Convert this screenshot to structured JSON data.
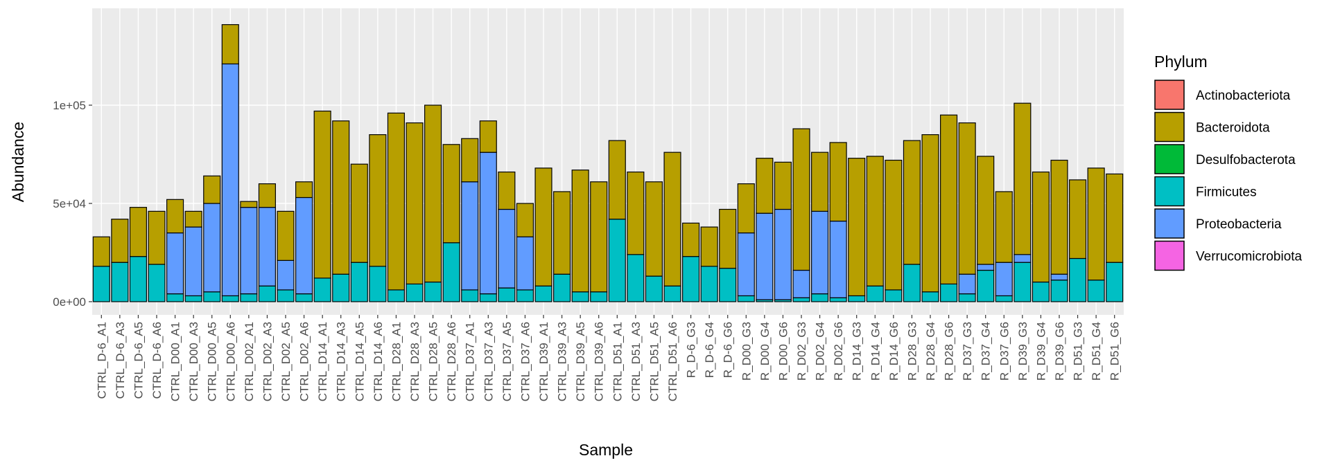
{
  "chart_data": {
    "type": "bar",
    "stacked": true,
    "x_label": "Sample",
    "y_label": "Abundance",
    "legend_title": "Phylum",
    "legend_position": "right",
    "grid": true,
    "ylim": [
      -6700,
      149300
    ],
    "yticks": [
      {
        "value": 0,
        "label": "0e+00"
      },
      {
        "value": 50000,
        "label": "5e+04"
      },
      {
        "value": 100000,
        "label": "1e+05"
      }
    ],
    "categories": [
      "CTRL_D-6_A1",
      "CTRL_D-6_A3",
      "CTRL_D-6_A5",
      "CTRL_D-6_A6",
      "CTRL_D00_A1",
      "CTRL_D00_A3",
      "CTRL_D00_A5",
      "CTRL_D00_A6",
      "CTRL_D02_A1",
      "CTRL_D02_A3",
      "CTRL_D02_A5",
      "CTRL_D02_A6",
      "CTRL_D14_A1",
      "CTRL_D14_A3",
      "CTRL_D14_A5",
      "CTRL_D14_A6",
      "CTRL_D28_A1",
      "CTRL_D28_A3",
      "CTRL_D28_A5",
      "CTRL_D28_A6",
      "CTRL_D37_A1",
      "CTRL_D37_A3",
      "CTRL_D37_A5",
      "CTRL_D37_A6",
      "CTRL_D39_A1",
      "CTRL_D39_A3",
      "CTRL_D39_A5",
      "CTRL_D39_A6",
      "CTRL_D51_A1",
      "CTRL_D51_A3",
      "CTRL_D51_A5",
      "CTRL_D51_A6",
      "R_D-6_G3",
      "R_D-6_G4",
      "R_D-6_G6",
      "R_D00_G3",
      "R_D00_G4",
      "R_D00_G6",
      "R_D02_G3",
      "R_D02_G4",
      "R_D02_G6",
      "R_D14_G3",
      "R_D14_G4",
      "R_D14_G6",
      "R_D28_G3",
      "R_D28_G4",
      "R_D28_G6",
      "R_D37_G3",
      "R_D37_G4",
      "R_D37_G6",
      "R_D39_G3",
      "R_D39_G4",
      "R_D39_G6",
      "R_D51_G3",
      "R_D51_G4",
      "R_D51_G6"
    ],
    "series": [
      {
        "name": "Actinobacteriota",
        "color": "#F8766D",
        "values": [
          0,
          0,
          0,
          0,
          0,
          0,
          0,
          0,
          0,
          0,
          0,
          0,
          0,
          0,
          0,
          0,
          0,
          0,
          0,
          0,
          0,
          0,
          0,
          0,
          0,
          0,
          0,
          0,
          0,
          0,
          0,
          0,
          0,
          0,
          0,
          0,
          0,
          0,
          0,
          0,
          0,
          0,
          0,
          0,
          0,
          0,
          0,
          0,
          0,
          0,
          0,
          0,
          0,
          0,
          0,
          0
        ]
      },
      {
        "name": "Bacteroidota",
        "color": "#B79F00",
        "values": [
          15000,
          22000,
          25000,
          27000,
          17000,
          8000,
          14000,
          20000,
          3000,
          12000,
          25000,
          8000,
          85000,
          78000,
          50000,
          67000,
          90000,
          82000,
          90000,
          50000,
          22000,
          16000,
          19000,
          17000,
          60000,
          42000,
          62000,
          56000,
          40000,
          42000,
          48000,
          68000,
          17000,
          20000,
          30000,
          25000,
          28000,
          24000,
          72000,
          30000,
          40000,
          70000,
          66000,
          66000,
          63000,
          80000,
          86000,
          77000,
          55000,
          36000,
          77000,
          56000,
          58000,
          40000,
          57000,
          45000
        ]
      },
      {
        "name": "Desulfobacterota",
        "color": "#00BA38",
        "values": [
          0,
          0,
          0,
          0,
          0,
          0,
          0,
          0,
          0,
          0,
          0,
          0,
          0,
          0,
          0,
          0,
          0,
          0,
          0,
          0,
          0,
          0,
          0,
          0,
          0,
          0,
          0,
          0,
          0,
          0,
          0,
          0,
          0,
          0,
          0,
          0,
          0,
          0,
          0,
          0,
          0,
          0,
          0,
          0,
          0,
          0,
          0,
          0,
          0,
          0,
          0,
          0,
          0,
          0,
          0,
          0
        ]
      },
      {
        "name": "Firmicutes",
        "color": "#00BFC4",
        "values": [
          18000,
          20000,
          23000,
          19000,
          4000,
          3000,
          5000,
          3000,
          4000,
          8000,
          6000,
          4000,
          12000,
          14000,
          20000,
          18000,
          6000,
          9000,
          10000,
          30000,
          6000,
          4000,
          7000,
          6000,
          8000,
          14000,
          5000,
          5000,
          42000,
          24000,
          13000,
          8000,
          23000,
          18000,
          17000,
          3000,
          1000,
          1000,
          2000,
          4000,
          2000,
          3000,
          8000,
          6000,
          19000,
          5000,
          9000,
          4000,
          16000,
          3000,
          20000,
          10000,
          11000,
          22000,
          11000,
          20000
        ]
      },
      {
        "name": "Proteobacteria",
        "color": "#619CFF",
        "values": [
          0,
          0,
          0,
          0,
          31000,
          35000,
          45000,
          118000,
          44000,
          40000,
          15000,
          49000,
          0,
          0,
          0,
          0,
          0,
          0,
          0,
          0,
          55000,
          72000,
          40000,
          27000,
          0,
          0,
          0,
          0,
          0,
          0,
          0,
          0,
          0,
          0,
          0,
          32000,
          44000,
          46000,
          14000,
          42000,
          39000,
          0,
          0,
          0,
          0,
          0,
          0,
          10000,
          3000,
          17000,
          4000,
          0,
          3000,
          0,
          0,
          0
        ]
      },
      {
        "name": "Verrucomicrobiota",
        "color": "#F564E3",
        "values": [
          0,
          0,
          0,
          0,
          0,
          0,
          0,
          0,
          0,
          0,
          0,
          0,
          0,
          0,
          0,
          0,
          0,
          0,
          0,
          0,
          0,
          0,
          0,
          0,
          0,
          0,
          0,
          0,
          0,
          0,
          0,
          0,
          0,
          0,
          0,
          0,
          0,
          0,
          0,
          0,
          0,
          0,
          0,
          0,
          0,
          0,
          0,
          0,
          0,
          0,
          0,
          0,
          0,
          0,
          0,
          0
        ]
      }
    ],
    "stack_order": [
      "Firmicutes",
      "Proteobacteria",
      "Bacteroidota",
      "Actinobacteriota",
      "Desulfobacterota",
      "Verrucomicrobiota"
    ]
  }
}
